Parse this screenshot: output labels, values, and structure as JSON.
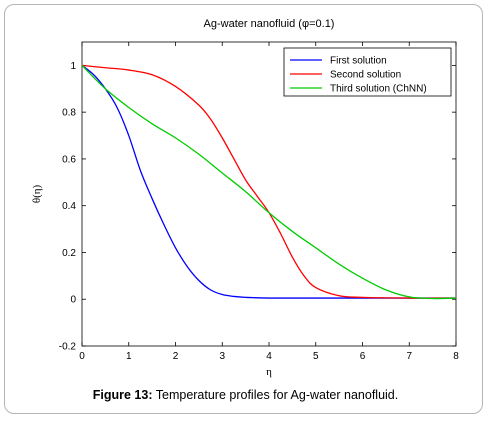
{
  "caption": {
    "label": "Figure 13:",
    "text": " Temperature profiles for Ag-water nanofluid."
  },
  "chart_data": {
    "type": "line",
    "title": "Ag-water nanofluid (φ=0.1)",
    "xlabel": "η",
    "ylabel": "θ(η)",
    "xlim": [
      0,
      8
    ],
    "ylim": [
      -0.2,
      1.1
    ],
    "x_ticks": [
      0,
      1,
      2,
      3,
      4,
      5,
      6,
      7,
      8
    ],
    "x_tick_labels": [
      "0",
      "1",
      "2",
      "3",
      "4",
      "5",
      "6",
      "7",
      "8"
    ],
    "y_ticks": [
      -0.2,
      0,
      0.2,
      0.4,
      0.6,
      0.8,
      1
    ],
    "y_tick_labels": [
      "-0.2",
      "0",
      "0.2",
      "0.4",
      "0.6",
      "0.8",
      "1"
    ],
    "grid": false,
    "legend_position": "top-right",
    "series": [
      {
        "name": "First solution",
        "color": "#0000ff",
        "x": [
          0,
          0.25,
          0.5,
          0.75,
          1.0,
          1.25,
          1.5,
          1.75,
          2.0,
          2.25,
          2.5,
          2.75,
          3.0,
          3.25,
          3.5,
          4.0,
          5.0,
          6.0,
          7.0,
          8.0
        ],
        "y": [
          1.0,
          0.96,
          0.9,
          0.82,
          0.7,
          0.55,
          0.43,
          0.32,
          0.22,
          0.14,
          0.08,
          0.04,
          0.02,
          0.012,
          0.008,
          0.005,
          0.005,
          0.005,
          0.005,
          0.005
        ]
      },
      {
        "name": "Second solution",
        "color": "#ff0000",
        "x": [
          0,
          0.5,
          1.0,
          1.5,
          2.0,
          2.5,
          2.75,
          3.0,
          3.25,
          3.5,
          3.75,
          4.0,
          4.25,
          4.5,
          4.75,
          5.0,
          5.5,
          6.0,
          7.0,
          8.0
        ],
        "y": [
          1.0,
          0.99,
          0.98,
          0.96,
          0.91,
          0.83,
          0.77,
          0.69,
          0.6,
          0.51,
          0.44,
          0.37,
          0.28,
          0.18,
          0.1,
          0.05,
          0.015,
          0.008,
          0.005,
          0.005
        ]
      },
      {
        "name": "Third solution (ChNN)",
        "color": "#00cc00",
        "x": [
          0,
          0.5,
          1.0,
          1.5,
          2.0,
          2.5,
          3.0,
          3.5,
          4.0,
          4.5,
          5.0,
          5.5,
          6.0,
          6.5,
          7.0,
          7.5,
          8.0
        ],
        "y": [
          1.0,
          0.9,
          0.82,
          0.75,
          0.69,
          0.62,
          0.54,
          0.46,
          0.37,
          0.29,
          0.22,
          0.15,
          0.09,
          0.04,
          0.01,
          0.003,
          0.005
        ]
      }
    ]
  }
}
